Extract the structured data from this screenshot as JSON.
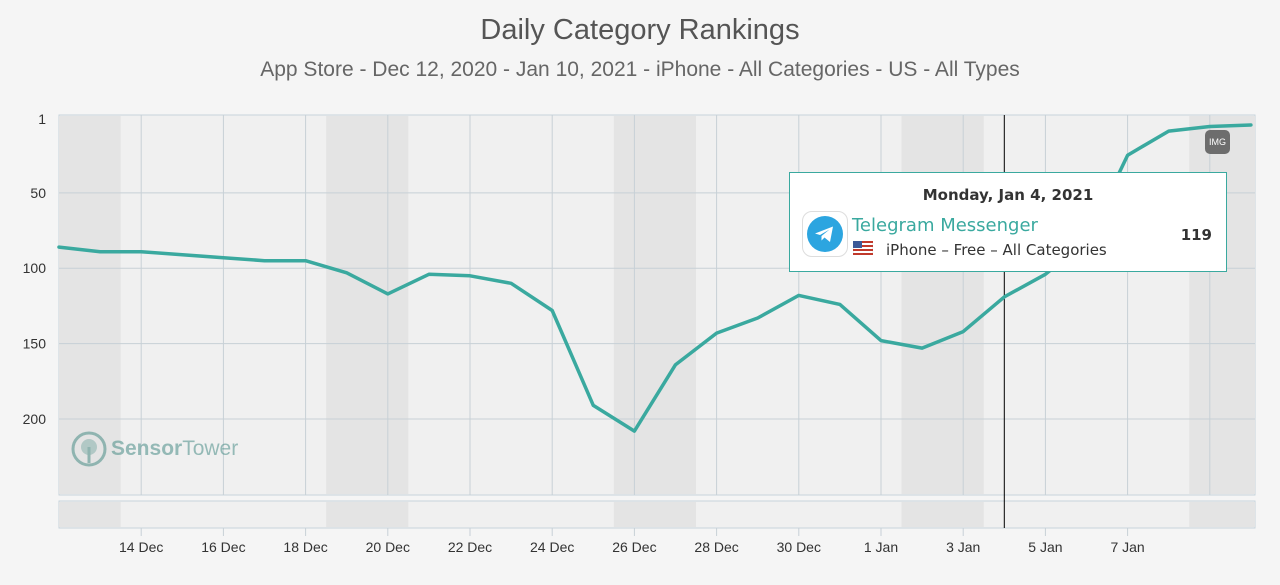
{
  "title": "Daily Category Rankings",
  "subtitle": "App Store - Dec 12, 2020 - Jan 10, 2021 - iPhone - All Categories - US - All Types",
  "watermark": {
    "part1": "Sensor",
    "part2": "Tower"
  },
  "badge": "IMG",
  "tooltip": {
    "date": "Monday, Jan 4, 2021",
    "app_name": "Telegram Messenger",
    "detail": "iPhone – Free – All Categories",
    "value": "119",
    "icon": "telegram-icon"
  },
  "colors": {
    "line": "#3aa99f",
    "weekend_band": "#e4e4e4",
    "plot_bg": "#f0f0f0",
    "crosshair": "#000000"
  },
  "chart_data": {
    "type": "line",
    "title": "Daily Category Rankings",
    "subtitle": "App Store - Dec 12, 2020 - Jan 10, 2021 - iPhone - All Categories - US - All Types",
    "y_reversed": true,
    "y_ticks": [
      1,
      50,
      100,
      150,
      200
    ],
    "y_range": [
      1,
      250
    ],
    "x_ticks": [
      "14 Dec",
      "16 Dec",
      "18 Dec",
      "20 Dec",
      "22 Dec",
      "24 Dec",
      "26 Dec",
      "28 Dec",
      "30 Dec",
      "1 Jan",
      "3 Jan",
      "5 Jan",
      "7 Jan"
    ],
    "x": [
      "2020-12-12",
      "2020-12-13",
      "2020-12-14",
      "2020-12-15",
      "2020-12-16",
      "2020-12-17",
      "2020-12-18",
      "2020-12-19",
      "2020-12-20",
      "2020-12-21",
      "2020-12-22",
      "2020-12-23",
      "2020-12-24",
      "2020-12-25",
      "2020-12-26",
      "2020-12-27",
      "2020-12-28",
      "2020-12-29",
      "2020-12-30",
      "2020-12-31",
      "2021-01-01",
      "2021-01-02",
      "2021-01-03",
      "2021-01-04",
      "2021-01-05",
      "2021-01-06",
      "2021-01-07",
      "2021-01-08",
      "2021-01-09",
      "2021-01-10"
    ],
    "series": [
      {
        "values": [
          86,
          89,
          89,
          91,
          93,
          95,
          95,
          103,
          117,
          104,
          105,
          110,
          128,
          191,
          208,
          164,
          143,
          133,
          118,
          124,
          148,
          153,
          142,
          119,
          104,
          82,
          25,
          9,
          6,
          5
        ]
      }
    ],
    "weekend_bands": [
      [
        "2020-12-12",
        "2020-12-13"
      ],
      [
        "2020-12-19",
        "2020-12-20"
      ],
      [
        "2020-12-26",
        "2020-12-27"
      ],
      [
        "2021-01-02",
        "2021-01-03"
      ],
      [
        "2021-01-09",
        "2021-01-10"
      ]
    ],
    "crosshair_x": "2021-01-04",
    "grid": true
  }
}
